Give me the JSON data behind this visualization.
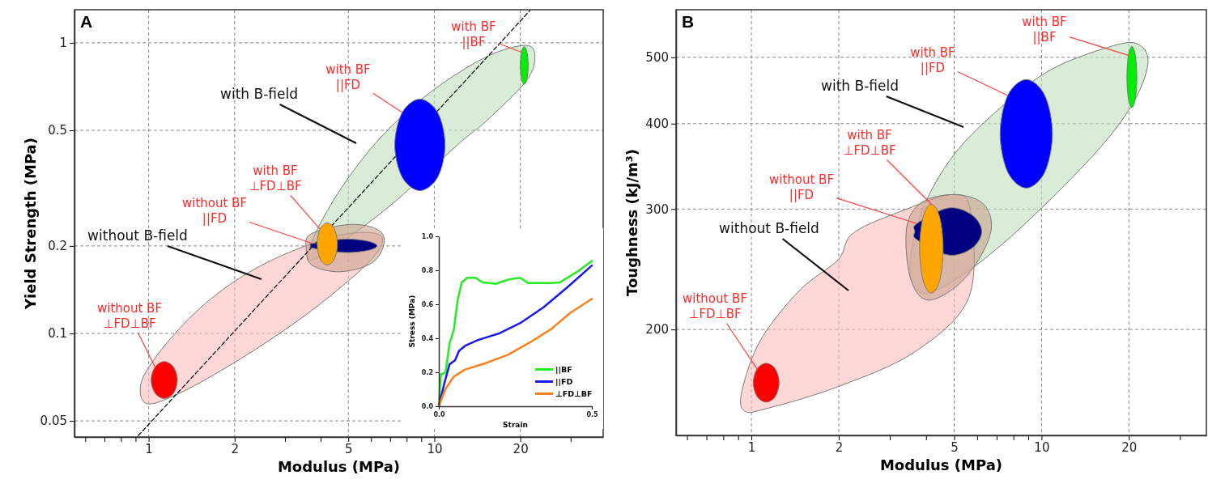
{
  "chart_data": [
    {
      "type": "area",
      "title": "A",
      "xlabel": "Modulus (MPa)",
      "ylabel": "Yield Strength (MPa)",
      "log": "xy",
      "grid": true,
      "legend": false,
      "xlim": [
        0.55,
        39
      ],
      "ylim": [
        0.044,
        1.3
      ],
      "xticks": [
        {
          "value": 0.6,
          "label": null
        },
        {
          "value": 0.7,
          "label": null
        },
        {
          "value": 0.8,
          "label": null
        },
        {
          "value": 0.9,
          "label": null
        },
        1,
        2,
        {
          "value": 3,
          "label": null
        },
        {
          "value": 4,
          "label": null
        },
        5,
        {
          "value": 6,
          "label": null
        },
        {
          "value": 7,
          "label": null
        },
        {
          "value": 8,
          "label": null
        },
        {
          "value": 9,
          "label": null
        },
        10,
        20,
        {
          "value": 30,
          "label": null
        }
      ],
      "yticks": [
        0.05,
        0.1,
        0.2,
        0.5,
        1
      ],
      "series": [
        {
          "color": "#bfe0be",
          "x": [
            3.72,
            4.67,
            6.47,
            9.55,
            15.1,
            20.9,
            22.5,
            20.9,
            15.1,
            12.2,
            6.68,
            3.84
          ],
          "values": [
            0.206,
            0.311,
            0.471,
            0.669,
            0.892,
            0.98,
            0.892,
            0.736,
            0.535,
            0.45,
            0.265,
            0.181
          ]
        },
        {
          "color": "#ffbcbc",
          "x": [
            0.95,
            1.19,
            1.65,
            2.44,
            3.84,
            5.32,
            6.55,
            6.06,
            4.38,
            2.96,
            1.88,
            1.27,
            0.98
          ],
          "values": [
            0.0695,
            0.0957,
            0.1315,
            0.17,
            0.206,
            0.222,
            0.215,
            0.181,
            0.136,
            0.102,
            0.0766,
            0.062,
            0.0574
          ]
        },
        {
          "color": "#c9a48e",
          "x": [
            3.56,
            3.7,
            4.99,
            6.26,
            6.68,
            6.06,
            4.67,
            3.72
          ],
          "values": [
            0.197,
            0.22,
            0.237,
            0.229,
            0.206,
            0.175,
            0.163,
            0.172
          ]
        },
        {
          "type": "line",
          "color": "#000000",
          "line_style": "dashed",
          "x": [
            0.92,
            21.6
          ],
          "values": [
            0.0445,
            1.29
          ]
        },
        {
          "color": "#ff0000",
          "x": [
            1.26,
            1.221,
            1.134,
            1.053,
            1.02,
            1.053,
            1.134,
            1.221
          ],
          "values": [
            0.0691,
            0.0766,
            0.08,
            0.0766,
            0.0691,
            0.0623,
            0.0597,
            0.0623
          ]
        },
        {
          "color": "#000080",
          "x": [
            6.3,
            5.83,
            4.83,
            3.75,
            3.7,
            3.75,
            4.83,
            5.83
          ],
          "values": [
            0.2002,
            0.2078,
            0.211,
            0.2038,
            0.2002,
            0.1966,
            0.19,
            0.1929
          ]
        },
        {
          "color": "#ffa500",
          "x": [
            4.58,
            4.47,
            4.22,
            3.98,
            3.89,
            3.98,
            4.22,
            4.47
          ],
          "values": [
            0.2032,
            0.2286,
            0.24,
            0.2286,
            0.2032,
            0.1806,
            0.172,
            0.1806
          ]
        },
        {
          "color": "#0000ff",
          "x": [
            10.9,
            10.27,
            8.9,
            7.72,
            7.27,
            7.72,
            8.9,
            10.27
          ],
          "values": [
            0.4454,
            0.5755,
            0.64,
            0.5755,
            0.4454,
            0.3447,
            0.31,
            0.3447
          ]
        },
        {
          "color": "#00ee00",
          "x": [
            21.3,
            21.1,
            20.64,
            20.19,
            20,
            20.19,
            20.64,
            21.1
          ],
          "values": [
            0.8357,
            0.9285,
            0.97,
            0.9285,
            0.8357,
            0.7522,
            0.72,
            0.7522
          ]
        }
      ],
      "annotations": [
        {
          "text": "with BF\n||BF",
          "x": 20.19,
          "y": 0.9285
        },
        {
          "text": "with BF\n||FD",
          "x": 7.72,
          "y": 0.5755
        },
        "with B-field",
        {
          "text": "with BF\n⊥FD⊥BF",
          "x": 3.98,
          "y": 0.2286
        },
        {
          "text": "without BF\n||FD",
          "x": 3.75,
          "y": 0.2038
        },
        "without B-field",
        {
          "text": "without BF\n⊥FD⊥BF",
          "x": 1.053,
          "y": 0.0766
        }
      ]
    },
    {
      "type": "line",
      "xlabel": "Strain",
      "ylabel": "Stress (MPa)",
      "legend": "bottom right",
      "xlim": [
        0,
        0.5
      ],
      "ylim": [
        0,
        1
      ],
      "xticks": [
        {
          "value": 0,
          "label": "0.0"
        },
        {
          "value": 0.5,
          "label": "0.5"
        }
      ],
      "yticks": [
        {
          "value": 0,
          "label": "0.0"
        },
        {
          "value": 0.2,
          "label": "0.2"
        },
        {
          "value": 0.4,
          "label": "0.4"
        },
        {
          "value": 0.6,
          "label": "0.6"
        },
        {
          "value": 0.8,
          "label": "0.8"
        },
        {
          "value": 1,
          "label": "1.0"
        }
      ],
      "series": [
        {
          "name": "||BF",
          "color": "#22ee22",
          "x": [
            0,
            0.007,
            0.013,
            0.022,
            0.035,
            0.049,
            0.062,
            0.075,
            0.093,
            0.12,
            0.142,
            0.186,
            0.226,
            0.265,
            0.292,
            0.332,
            0.367,
            0.394,
            0.42,
            0.456,
            0.5
          ],
          "values": [
            0,
            0.19,
            0.19,
            0.2,
            0.37,
            0.45,
            0.63,
            0.73,
            0.756,
            0.756,
            0.73,
            0.72,
            0.745,
            0.756,
            0.725,
            0.725,
            0.725,
            0.728,
            0.756,
            0.796,
            0.855
          ]
        },
        {
          "name": "||FD",
          "color": "#1a1aee",
          "x": [
            0,
            0.018,
            0.035,
            0.053,
            0.066,
            0.088,
            0.128,
            0.199,
            0.27,
            0.341,
            0.42,
            0.5
          ],
          "values": [
            0,
            0.135,
            0.247,
            0.27,
            0.326,
            0.358,
            0.39,
            0.43,
            0.494,
            0.581,
            0.7,
            0.828
          ]
        },
        {
          "name": "⊥FD⊥BF",
          "color": "#ff7f1a",
          "x": [
            0,
            0.022,
            0.049,
            0.084,
            0.155,
            0.226,
            0.296,
            0.367,
            0.429,
            0.5
          ],
          "values": [
            0,
            0.103,
            0.175,
            0.215,
            0.255,
            0.303,
            0.374,
            0.454,
            0.549,
            0.632
          ]
        }
      ]
    },
    {
      "type": "area",
      "title": "B",
      "xlabel": "Modulus (MPa)",
      "ylabel": "Toughness (kJ/m³)",
      "log": "xy",
      "grid": true,
      "legend": false,
      "xlim": [
        0.55,
        37
      ],
      "ylim": [
        140,
        587
      ],
      "xticks": [
        {
          "value": 0.6,
          "label": null
        },
        {
          "value": 0.7,
          "label": null
        },
        {
          "value": 0.8,
          "label": null
        },
        {
          "value": 0.9,
          "label": null
        },
        1,
        2,
        {
          "value": 3,
          "label": null
        },
        {
          "value": 4,
          "label": null
        },
        5,
        {
          "value": 6,
          "label": null
        },
        {
          "value": 7,
          "label": null
        },
        {
          "value": 8,
          "label": null
        },
        {
          "value": 9,
          "label": null
        },
        10,
        20,
        {
          "value": 30,
          "label": null
        }
      ],
      "yticks": [
        200,
        300,
        400,
        500
      ],
      "series": [
        {
          "color": "#bfe0be",
          "x": [
            3.52,
            3.87,
            5.01,
            7.36,
            10.8,
            16.9,
            21.2,
            23.3,
            21.2,
            16.9,
            11.5,
            7.36,
            5.01,
            3.87
          ],
          "values": [
            246,
            298,
            361,
            425,
            480,
            517,
            524,
            494,
            437,
            380,
            319,
            267,
            236,
            226
          ]
        },
        {
          "color": "#ffbcbc",
          "x": [
            0.929,
            1.076,
            1.463,
            1.99,
            2.25,
            3.43,
            4.94,
            5.69,
            5.62,
            3.66,
            1.99,
            1.147,
            0.946
          ],
          "values": [
            163,
            193,
            228,
            253,
            277,
            300,
            315,
            298,
            223,
            185.5,
            165,
            153.5,
            152
          ]
        },
        {
          "color": "#c9a48e",
          "x": [
            3.43,
            3.87,
            5.01,
            6.26,
            6.72,
            6.07,
            5.01,
            4.0,
            3.52
          ],
          "values": [
            282,
            307,
            315,
            306,
            282,
            253,
            230,
            221,
            239
          ]
        },
        {
          "color": "#ff0000",
          "x": [
            1.246,
            1.209,
            1.125,
            1.046,
            1.015,
            1.046,
            1.125,
            1.209
          ],
          "values": [
            167.2,
            175.1,
            178.5,
            175.1,
            167.2,
            159.6,
            156.6,
            159.6
          ]
        },
        {
          "color": "#000080",
          "x": [
            6.22,
            5.754,
            4.77,
            3.718,
            3.66,
            3.718,
            4.77,
            5.754
          ],
          "values": [
            278.1,
            294.1,
            301,
            285.7,
            278.1,
            270.7,
            257,
            263
          ]
        },
        {
          "color": "#ffa500",
          "x": [
            4.58,
            4.457,
            4.17,
            3.906,
            3.8,
            3.906,
            4.17,
            4.457
          ],
          "values": [
            262.5,
            291.9,
            305,
            291.9,
            262.5,
            236.1,
            226,
            236.1
          ]
        },
        {
          "color": "#0000ff",
          "x": [
            10.9,
            10.26,
            8.86,
            7.65,
            7.2,
            7.65,
            8.86,
            10.26
          ],
          "values": [
            386.5,
            439.8,
            464,
            439.8,
            386.5,
            339.7,
            322,
            339.7
          ]
        },
        {
          "color": "#00ee00",
          "x": [
            21.3,
            21.05,
            20.48,
            19.92,
            19.7,
            19.92,
            20.48,
            21.05
          ],
          "values": [
            468,
            503.5,
            519,
            503.5,
            468,
            435,
            422,
            435
          ]
        }
      ],
      "annotations": [
        {
          "text": "with BF\n||BF",
          "x": 19.92,
          "y": 503.5
        },
        {
          "text": "with BF\n||FD",
          "x": 7.65,
          "y": 439.8
        },
        "with B-field",
        {
          "text": "with BF\n⊥FD⊥BF",
          "x": 4.17,
          "y": 305
        },
        {
          "text": "without BF\n||FD",
          "x": 3.718,
          "y": 285.7
        },
        "without B-field",
        {
          "text": "without BF\n⊥FD⊥BF",
          "x": 1.046,
          "y": 175.1
        }
      ]
    }
  ]
}
